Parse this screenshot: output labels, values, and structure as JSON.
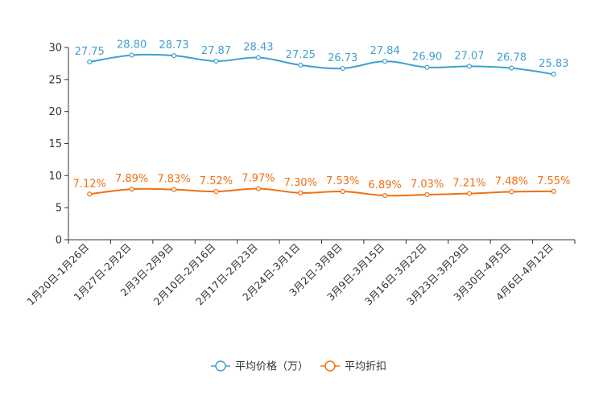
{
  "chart_data": {
    "type": "line",
    "categories": [
      "1月20日-1月26日",
      "1月27日-2月2日",
      "2月3日-2月9日",
      "2月10日-2月16日",
      "2月17日-2月23日",
      "2月24日-3月1日",
      "3月2日-3月8日",
      "3月9日-3月15日",
      "3月16日-3月22日",
      "3月23日-3月29日",
      "3月30日-4月5日",
      "4月6日-4月12日"
    ],
    "series": [
      {
        "name": "平均价格（万）",
        "color": "#3fa0d0",
        "values": [
          27.75,
          28.8,
          28.73,
          27.87,
          28.43,
          27.25,
          26.73,
          27.84,
          26.9,
          27.07,
          26.78,
          25.83
        ],
        "labels": [
          "27.75",
          "28.80",
          "28.73",
          "27.87",
          "28.43",
          "27.25",
          "26.73",
          "27.84",
          "26.90",
          "27.07",
          "26.78",
          "25.83"
        ]
      },
      {
        "name": "平均折扣",
        "color": "#f07010",
        "values": [
          7.12,
          7.89,
          7.83,
          7.52,
          7.97,
          7.3,
          7.53,
          6.89,
          7.03,
          7.21,
          7.48,
          7.55
        ],
        "labels": [
          "7.12%",
          "7.89%",
          "7.83%",
          "7.52%",
          "7.97%",
          "7.30%",
          "7.53%",
          "6.89%",
          "7.03%",
          "7.21%",
          "7.48%",
          "7.55%"
        ]
      }
    ],
    "yticks": [
      "0",
      "5",
      "10",
      "15",
      "20",
      "25",
      "30"
    ],
    "ylim": [
      0,
      30
    ],
    "title": "",
    "xlabel": "",
    "ylabel": "",
    "legend_position": "bottom-center"
  }
}
